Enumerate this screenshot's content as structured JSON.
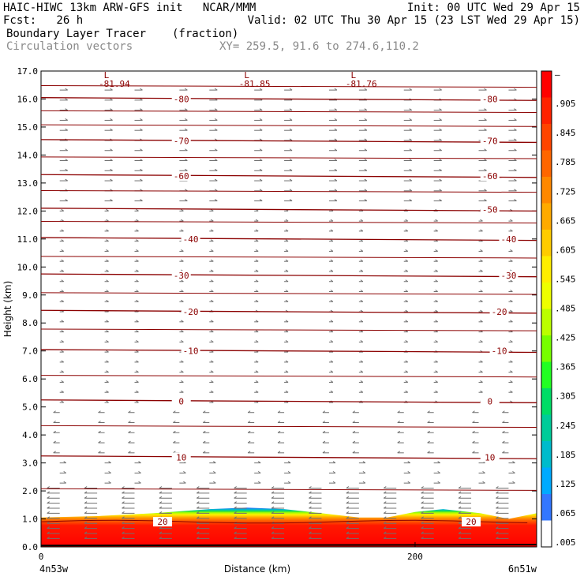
{
  "header": {
    "line1_left": "HAIC-HIWC 13km ARW-GFS init   NCAR/MMM",
    "line1_right": "Init: 00 UTC Wed 29 Apr 15",
    "line2_left": "Fcst:   26 h",
    "line2_right": "Valid: 02 UTC Thu 30 Apr 15 (23 LST Wed 29 Apr 15)",
    "field_name": "Boundary Layer Tracer",
    "field_units": "(fraction)",
    "vector_name": "Circulation vectors",
    "xy_info": "XY= 259.5, 91.6 to 274.6,110.2"
  },
  "colors": {
    "contour": "#8b0000",
    "vector": "#707070"
  },
  "chart_data": {
    "type": "heatmap",
    "xlabel": "Distance (km)",
    "ylabel": "Height (km)",
    "x_left_label": "4n53w",
    "x_right_label": "6n51w",
    "xlim": [
      0,
      265
    ],
    "ylim": [
      0,
      17
    ],
    "x_ticks": [
      {
        "value": 0,
        "label": "0"
      },
      {
        "value": 200,
        "label": "200"
      }
    ],
    "y_ticks": [
      {
        "value": 0,
        "label": "0.0"
      },
      {
        "value": 1,
        "label": "1.0"
      },
      {
        "value": 2,
        "label": "2.0"
      },
      {
        "value": 3,
        "label": "3.0"
      },
      {
        "value": 4,
        "label": "4.0"
      },
      {
        "value": 5,
        "label": "5.0"
      },
      {
        "value": 6,
        "label": "6.0"
      },
      {
        "value": 7,
        "label": "7.0"
      },
      {
        "value": 8,
        "label": "8.0"
      },
      {
        "value": 9,
        "label": "9.0"
      },
      {
        "value": 10,
        "label": "10.0"
      },
      {
        "value": 11,
        "label": "11.0"
      },
      {
        "value": 12,
        "label": "12.0"
      },
      {
        "value": 13,
        "label": "13.0"
      },
      {
        "value": 14,
        "label": "14.0"
      },
      {
        "value": 15,
        "label": "15.0"
      },
      {
        "value": 16,
        "label": "16.0"
      },
      {
        "value": 17,
        "label": "17.0"
      }
    ],
    "colorbar": {
      "labels": [
        "–",
        ".905",
        ".845",
        ".785",
        ".725",
        ".665",
        ".605",
        ".545",
        ".485",
        ".425",
        ".365",
        ".305",
        ".245",
        ".185",
        ".125",
        ".065",
        ".005"
      ],
      "colors": [
        "#ff0000",
        "#ff2200",
        "#ff4400",
        "#ff6600",
        "#ff8800",
        "#ffaa00",
        "#ffcc00",
        "#ffee00",
        "#eeff00",
        "#bbff00",
        "#77ff00",
        "#22ff22",
        "#00dd66",
        "#00cc99",
        "#00bbcc",
        "#00aaff",
        "#3377ff",
        "#ffffff"
      ]
    },
    "tracer_top_km": [
      [
        0,
        1.05
      ],
      [
        30,
        1.1
      ],
      [
        60,
        1.2
      ],
      [
        90,
        1.35
      ],
      [
        110,
        1.4
      ],
      [
        130,
        1.35
      ],
      [
        150,
        1.2
      ],
      [
        170,
        1.05
      ],
      [
        185,
        1.05
      ],
      [
        200,
        1.25
      ],
      [
        215,
        1.35
      ],
      [
        235,
        1.2
      ],
      [
        250,
        1.0
      ],
      [
        265,
        1.2
      ]
    ],
    "contours": [
      {
        "label": "-80",
        "y": 16.0,
        "label_x": [
          75,
          240
        ]
      },
      {
        "label": "-70",
        "y": 14.5,
        "label_x": [
          75,
          240
        ]
      },
      {
        "label": "-60",
        "y": 13.25,
        "label_x": [
          75,
          240
        ]
      },
      {
        "label": "-50",
        "y": 12.05,
        "label_x": [
          240
        ]
      },
      {
        "label": "-40",
        "y": 11.0,
        "label_x": [
          80,
          250
        ]
      },
      {
        "label": "-30",
        "y": 9.7,
        "label_x": [
          75,
          250
        ]
      },
      {
        "label": "-20",
        "y": 8.4,
        "label_x": [
          80,
          245
        ]
      },
      {
        "label": "-10",
        "y": 7.0,
        "label_x": [
          80,
          245
        ]
      },
      {
        "label": "0",
        "y": 5.2,
        "label_x": [
          75,
          240
        ]
      },
      {
        "label": "10",
        "y": 3.2,
        "label_x": [
          75,
          240
        ]
      },
      {
        "label": "20",
        "y": 0.9,
        "label_x": [
          65,
          230
        ]
      }
    ],
    "lows": [
      {
        "symbol": "L",
        "value": "-81.94",
        "x": 35
      },
      {
        "symbol": "L",
        "value": "-81.85",
        "x": 110
      },
      {
        "symbol": "L",
        "value": "-81.76",
        "x": 167
      }
    ]
  }
}
